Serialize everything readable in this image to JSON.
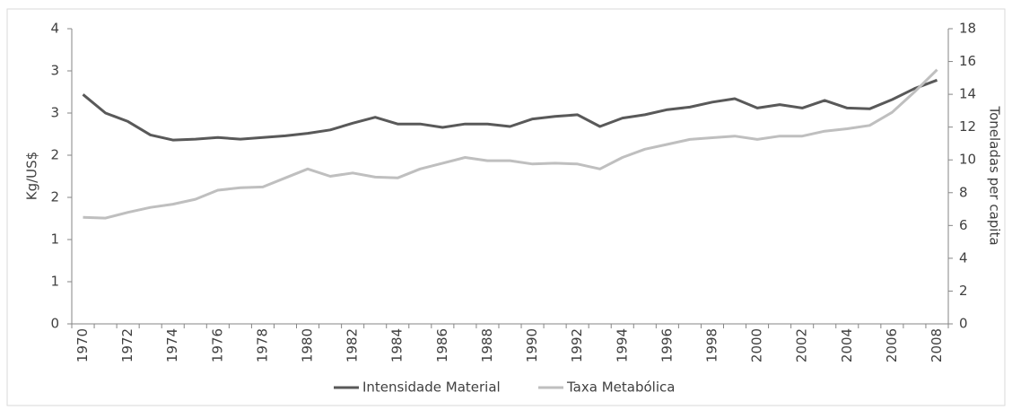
{
  "chart_data": {
    "type": "line",
    "y_label": "Kg/US$",
    "y2_label": "Toneladas per capita",
    "categories": [
      "1970",
      null,
      "1972",
      null,
      "1974",
      null,
      "1976",
      null,
      "1978",
      null,
      "1980",
      null,
      "1982",
      null,
      "1984",
      null,
      "1986",
      null,
      "1988",
      null,
      "1990",
      null,
      "1992",
      null,
      "1994",
      null,
      "1996",
      null,
      "1998",
      null,
      "2000",
      null,
      "2002",
      null,
      "2004",
      null,
      "2006",
      null,
      "2008"
    ],
    "series": [
      {
        "name": "Intensidade Material",
        "color": "#595959",
        "axis": "y",
        "values": [
          2.72,
          2.5,
          2.4,
          2.24,
          2.18,
          2.19,
          2.21,
          2.19,
          2.21,
          2.23,
          2.26,
          2.3,
          2.38,
          2.45,
          2.37,
          2.37,
          2.33,
          2.37,
          2.37,
          2.34,
          2.43,
          2.46,
          2.48,
          2.34,
          2.44,
          2.48,
          2.54,
          2.57,
          2.63,
          2.67,
          2.56,
          2.6,
          2.56,
          2.65,
          2.56,
          2.55,
          2.66,
          2.79,
          2.89
        ]
      },
      {
        "name": "Taxa Metabólica",
        "color": "#bfbfbf",
        "axis": "y2",
        "values": [
          6.5,
          6.45,
          6.8,
          7.1,
          7.3,
          7.6,
          8.15,
          8.3,
          8.35,
          8.9,
          9.45,
          9.0,
          9.2,
          8.95,
          8.9,
          9.45,
          9.8,
          10.15,
          9.95,
          9.95,
          9.75,
          9.8,
          9.75,
          9.45,
          10.15,
          10.65,
          10.95,
          11.25,
          11.35,
          11.45,
          11.25,
          11.45,
          11.45,
          11.75,
          11.9,
          12.1,
          12.9,
          14.15,
          15.5
        ]
      }
    ],
    "ylim": [
      0,
      3.5
    ],
    "yticks": [
      0,
      {
        "value": 0.5,
        "label": "1"
      },
      1,
      {
        "value": 1.5,
        "label": "2"
      },
      2,
      {
        "value": 2.5,
        "label": "3"
      },
      3,
      {
        "value": 3.5,
        "label": "4"
      }
    ],
    "y2lim": [
      0,
      18
    ],
    "y2ticks": [
      0,
      2,
      4,
      6,
      8,
      10,
      12,
      14,
      16,
      18
    ],
    "legend": "bottom"
  }
}
